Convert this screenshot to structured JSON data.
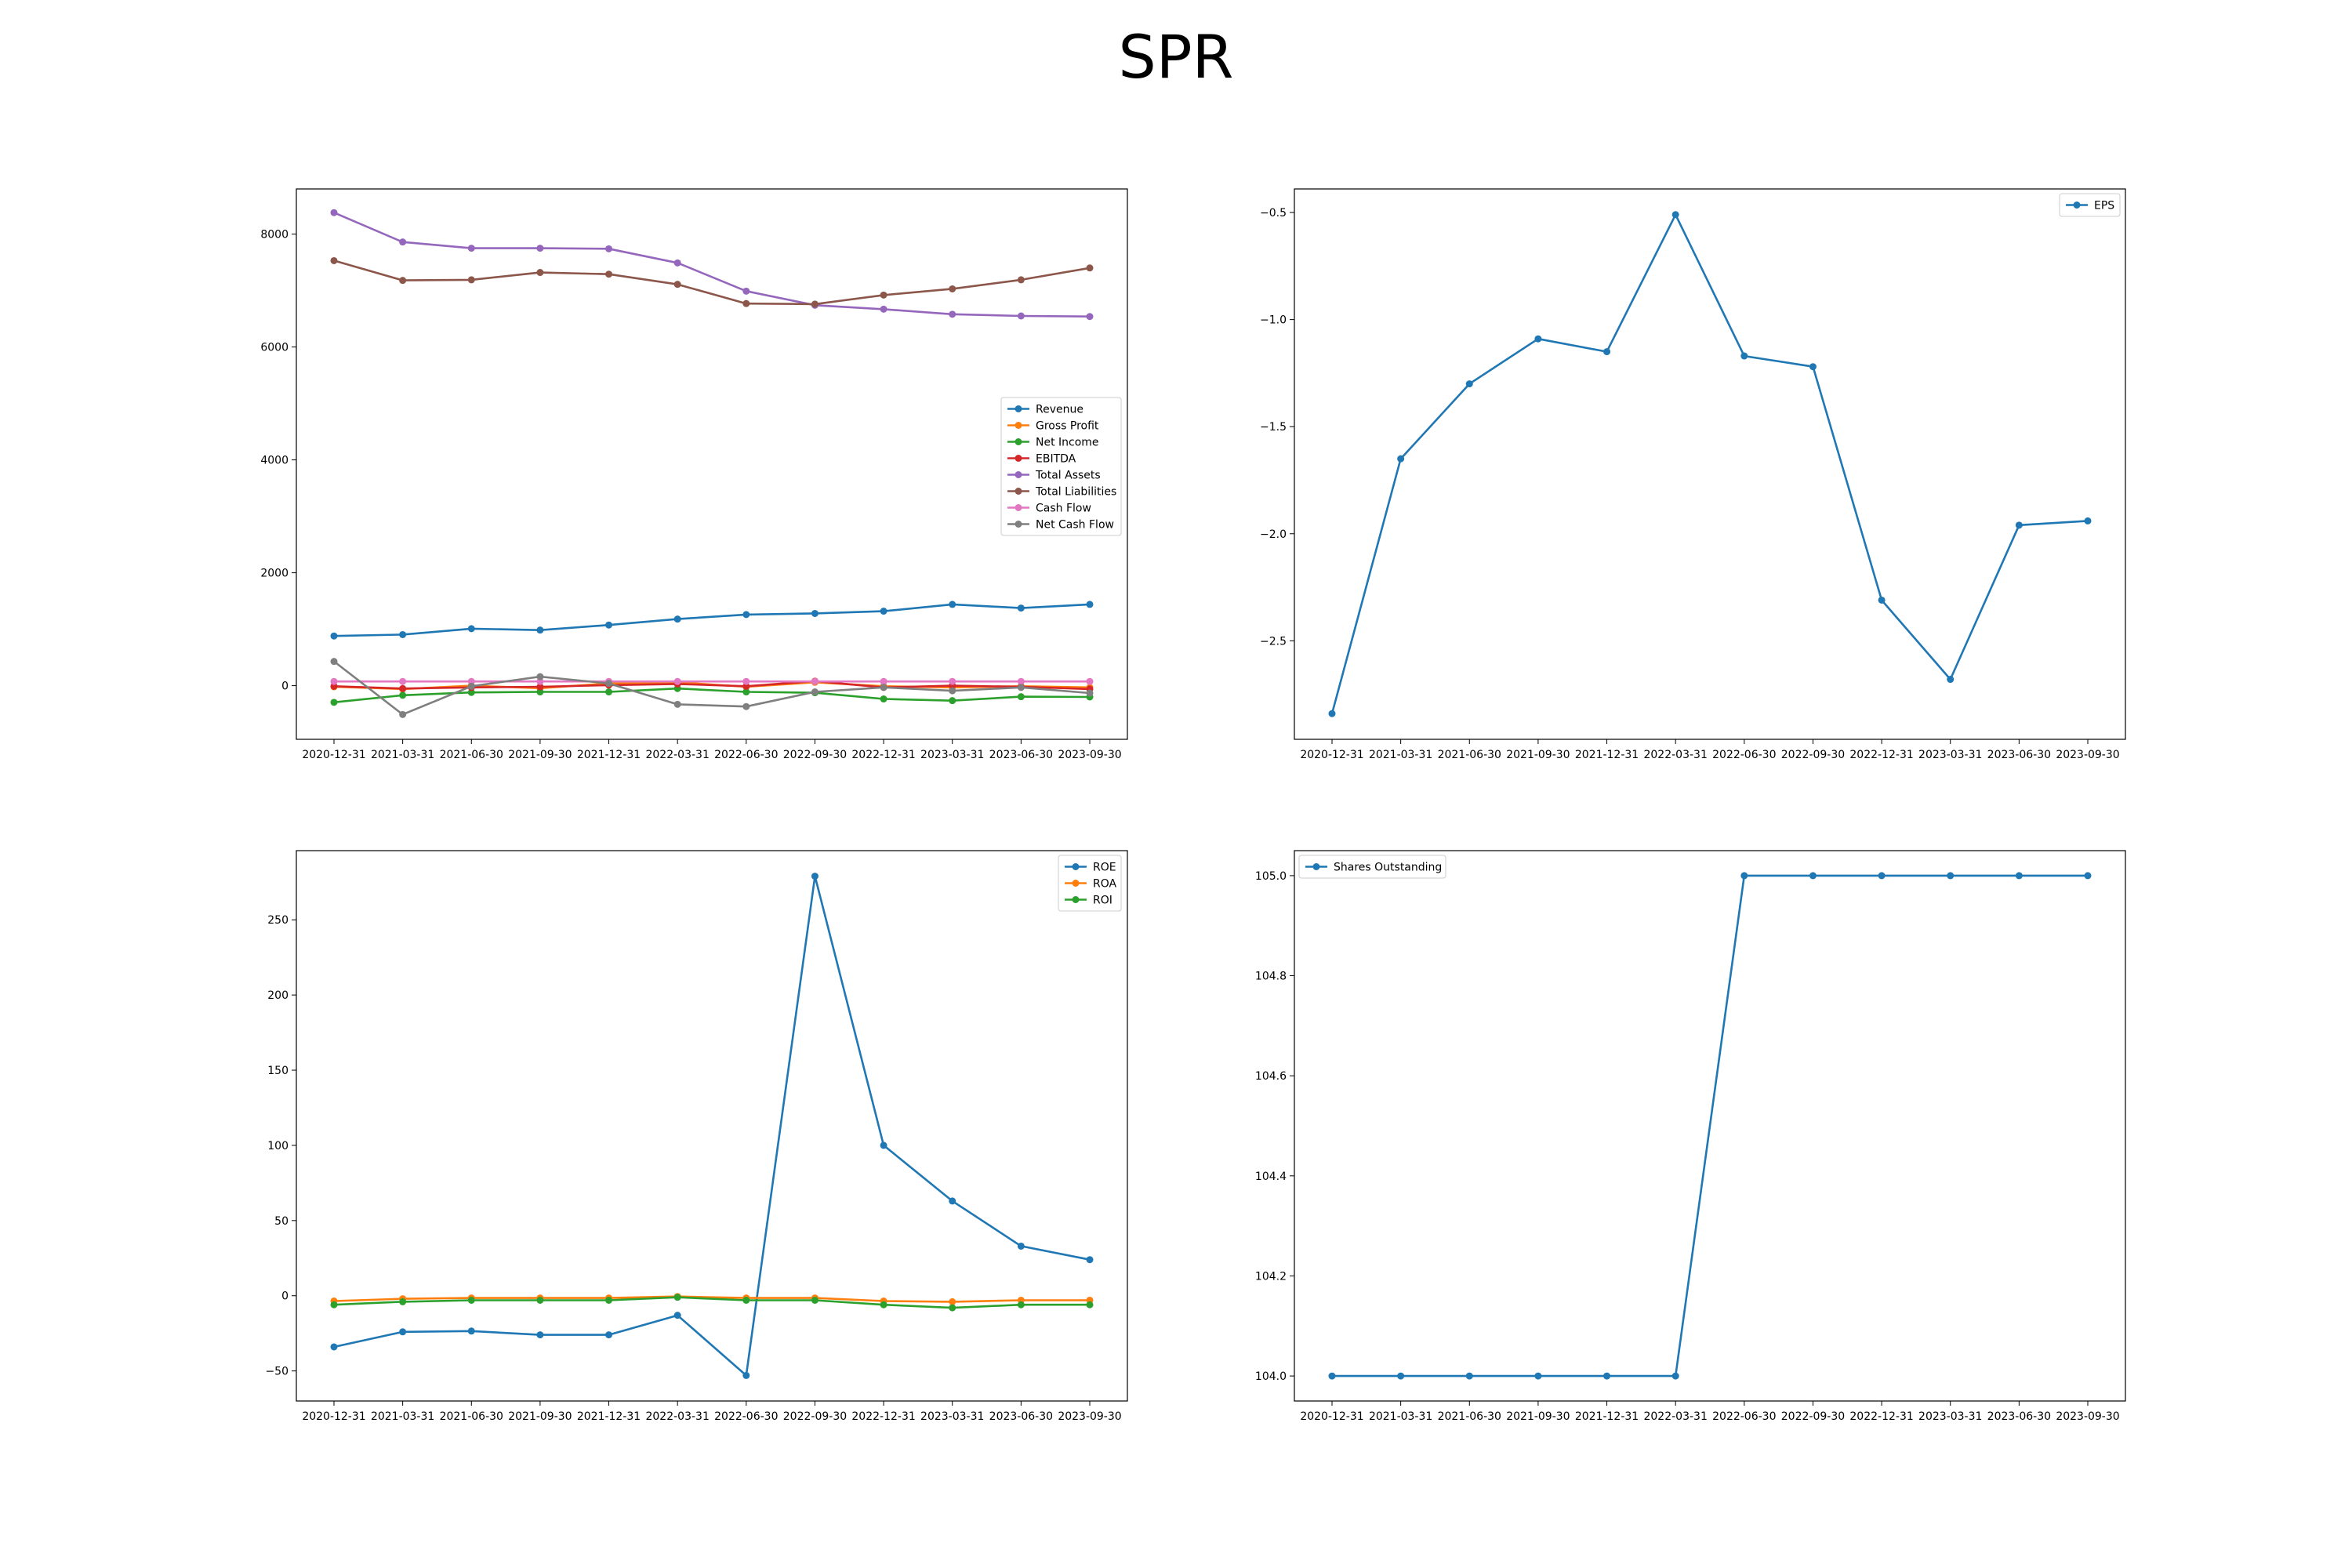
{
  "title": "SPR",
  "colors": {
    "blue": "#1f77b4",
    "orange": "#ff7f0e",
    "green": "#2ca02c",
    "red": "#d62728",
    "purple": "#9467bd",
    "brown": "#8c564b",
    "pink": "#e377c2",
    "gray": "#7f7f7f"
  },
  "chart_data": [
    {
      "type": "line",
      "title": "",
      "xlabel": "",
      "ylabel": "",
      "categories": [
        "2020-12-31",
        "2021-03-31",
        "2021-06-30",
        "2021-09-30",
        "2021-12-31",
        "2022-03-31",
        "2022-06-30",
        "2022-09-30",
        "2022-12-31",
        "2023-03-31",
        "2023-06-30",
        "2023-09-30"
      ],
      "ylim": [
        -950,
        8800
      ],
      "yticks": [
        0,
        2000,
        4000,
        6000,
        8000
      ],
      "legend": "center-right",
      "grid": false,
      "series": [
        {
          "name": "Revenue",
          "color": "#1f77b4",
          "values": [
            880,
            905,
            1010,
            985,
            1075,
            1180,
            1260,
            1280,
            1320,
            1440,
            1375,
            1440
          ]
        },
        {
          "name": "Gross Profit",
          "color": "#ff7f0e",
          "values": [
            -20,
            -60,
            0,
            -45,
            40,
            60,
            -20,
            60,
            -10,
            -30,
            -10,
            -30
          ]
        },
        {
          "name": "Net Income",
          "color": "#2ca02c",
          "values": [
            -295,
            -170,
            -120,
            -110,
            -110,
            -50,
            -110,
            -125,
            -235,
            -265,
            -195,
            -200
          ]
        },
        {
          "name": "EBITDA",
          "color": "#d62728",
          "values": [
            -10,
            -50,
            -30,
            -20,
            10,
            30,
            -10,
            80,
            -30,
            0,
            -20,
            -60
          ]
        },
        {
          "name": "Total Assets",
          "color": "#9467bd",
          "values": [
            8380,
            7860,
            7750,
            7750,
            7740,
            7490,
            6990,
            6740,
            6670,
            6580,
            6550,
            6540
          ]
        },
        {
          "name": "Total Liabilities",
          "color": "#8c564b",
          "values": [
            7530,
            7180,
            7190,
            7320,
            7290,
            7110,
            6770,
            6760,
            6920,
            7030,
            7190,
            7400
          ]
        },
        {
          "name": "Cash Flow",
          "color": "#e377c2",
          "values": [
            75,
            75,
            75,
            75,
            75,
            75,
            75,
            75,
            75,
            75,
            75,
            75
          ]
        },
        {
          "name": "Net Cash Flow",
          "color": "#7f7f7f",
          "values": [
            430,
            -510,
            -10,
            160,
            40,
            -330,
            -370,
            -110,
            -30,
            -90,
            -30,
            -130
          ]
        }
      ]
    },
    {
      "type": "line",
      "title": "",
      "xlabel": "",
      "ylabel": "",
      "categories": [
        "2020-12-31",
        "2021-03-31",
        "2021-06-30",
        "2021-09-30",
        "2021-12-31",
        "2022-03-31",
        "2022-06-30",
        "2022-09-30",
        "2022-12-31",
        "2023-03-31",
        "2023-06-30",
        "2023-09-30"
      ],
      "ylim": [
        -2.96,
        -0.39
      ],
      "yticks": [
        -0.5,
        -1.0,
        -1.5,
        -2.0,
        -2.5
      ],
      "ytick_labels": [
        "−0.5",
        "−1.0",
        "−1.5",
        "−2.0",
        "−2.5"
      ],
      "legend": "top-right",
      "grid": false,
      "series": [
        {
          "name": "EPS",
          "color": "#1f77b4",
          "values": [
            -2.84,
            -1.65,
            -1.3,
            -1.09,
            -1.15,
            -0.51,
            -1.17,
            -1.22,
            -2.31,
            -2.68,
            -1.96,
            -1.94
          ]
        }
      ]
    },
    {
      "type": "line",
      "title": "",
      "xlabel": "",
      "ylabel": "",
      "categories": [
        "2020-12-31",
        "2021-03-31",
        "2021-06-30",
        "2021-09-30",
        "2021-12-31",
        "2022-03-31",
        "2022-06-30",
        "2022-09-30",
        "2022-12-31",
        "2023-03-31",
        "2023-06-30",
        "2023-09-30"
      ],
      "ylim": [
        -70,
        296
      ],
      "yticks": [
        -50,
        0,
        50,
        100,
        150,
        200,
        250
      ],
      "ytick_labels": [
        "−50",
        "0",
        "50",
        "100",
        "150",
        "200",
        "250"
      ],
      "legend": "top-right",
      "grid": false,
      "series": [
        {
          "name": "ROE",
          "color": "#1f77b4",
          "values": [
            -34,
            -24,
            -23.5,
            -26,
            -26,
            -13,
            -53,
            279,
            100,
            63,
            33,
            24
          ]
        },
        {
          "name": "ROA",
          "color": "#ff7f0e",
          "values": [
            -3.5,
            -2,
            -1.5,
            -1.5,
            -1.5,
            -0.5,
            -1.5,
            -1.5,
            -3.5,
            -4,
            -3,
            -3
          ]
        },
        {
          "name": "ROI",
          "color": "#2ca02c",
          "values": [
            -6,
            -4,
            -3,
            -3,
            -3,
            -1,
            -3,
            -3,
            -6,
            -8,
            -6,
            -6
          ]
        }
      ]
    },
    {
      "type": "line",
      "title": "",
      "xlabel": "",
      "ylabel": "",
      "categories": [
        "2020-12-31",
        "2021-03-31",
        "2021-06-30",
        "2021-09-30",
        "2021-12-31",
        "2022-03-31",
        "2022-06-30",
        "2022-09-30",
        "2022-12-31",
        "2023-03-31",
        "2023-06-30",
        "2023-09-30"
      ],
      "ylim": [
        103.95,
        105.05
      ],
      "yticks": [
        104.0,
        104.2,
        104.4,
        104.6,
        104.8,
        105.0
      ],
      "ytick_labels": [
        "104.0",
        "104.2",
        "104.4",
        "104.6",
        "104.8",
        "105.0"
      ],
      "legend": "top-left",
      "grid": false,
      "series": [
        {
          "name": "Shares Outstanding",
          "color": "#1f77b4",
          "values": [
            104,
            104,
            104,
            104,
            104,
            104,
            105,
            105,
            105,
            105,
            105,
            105
          ]
        }
      ]
    }
  ]
}
